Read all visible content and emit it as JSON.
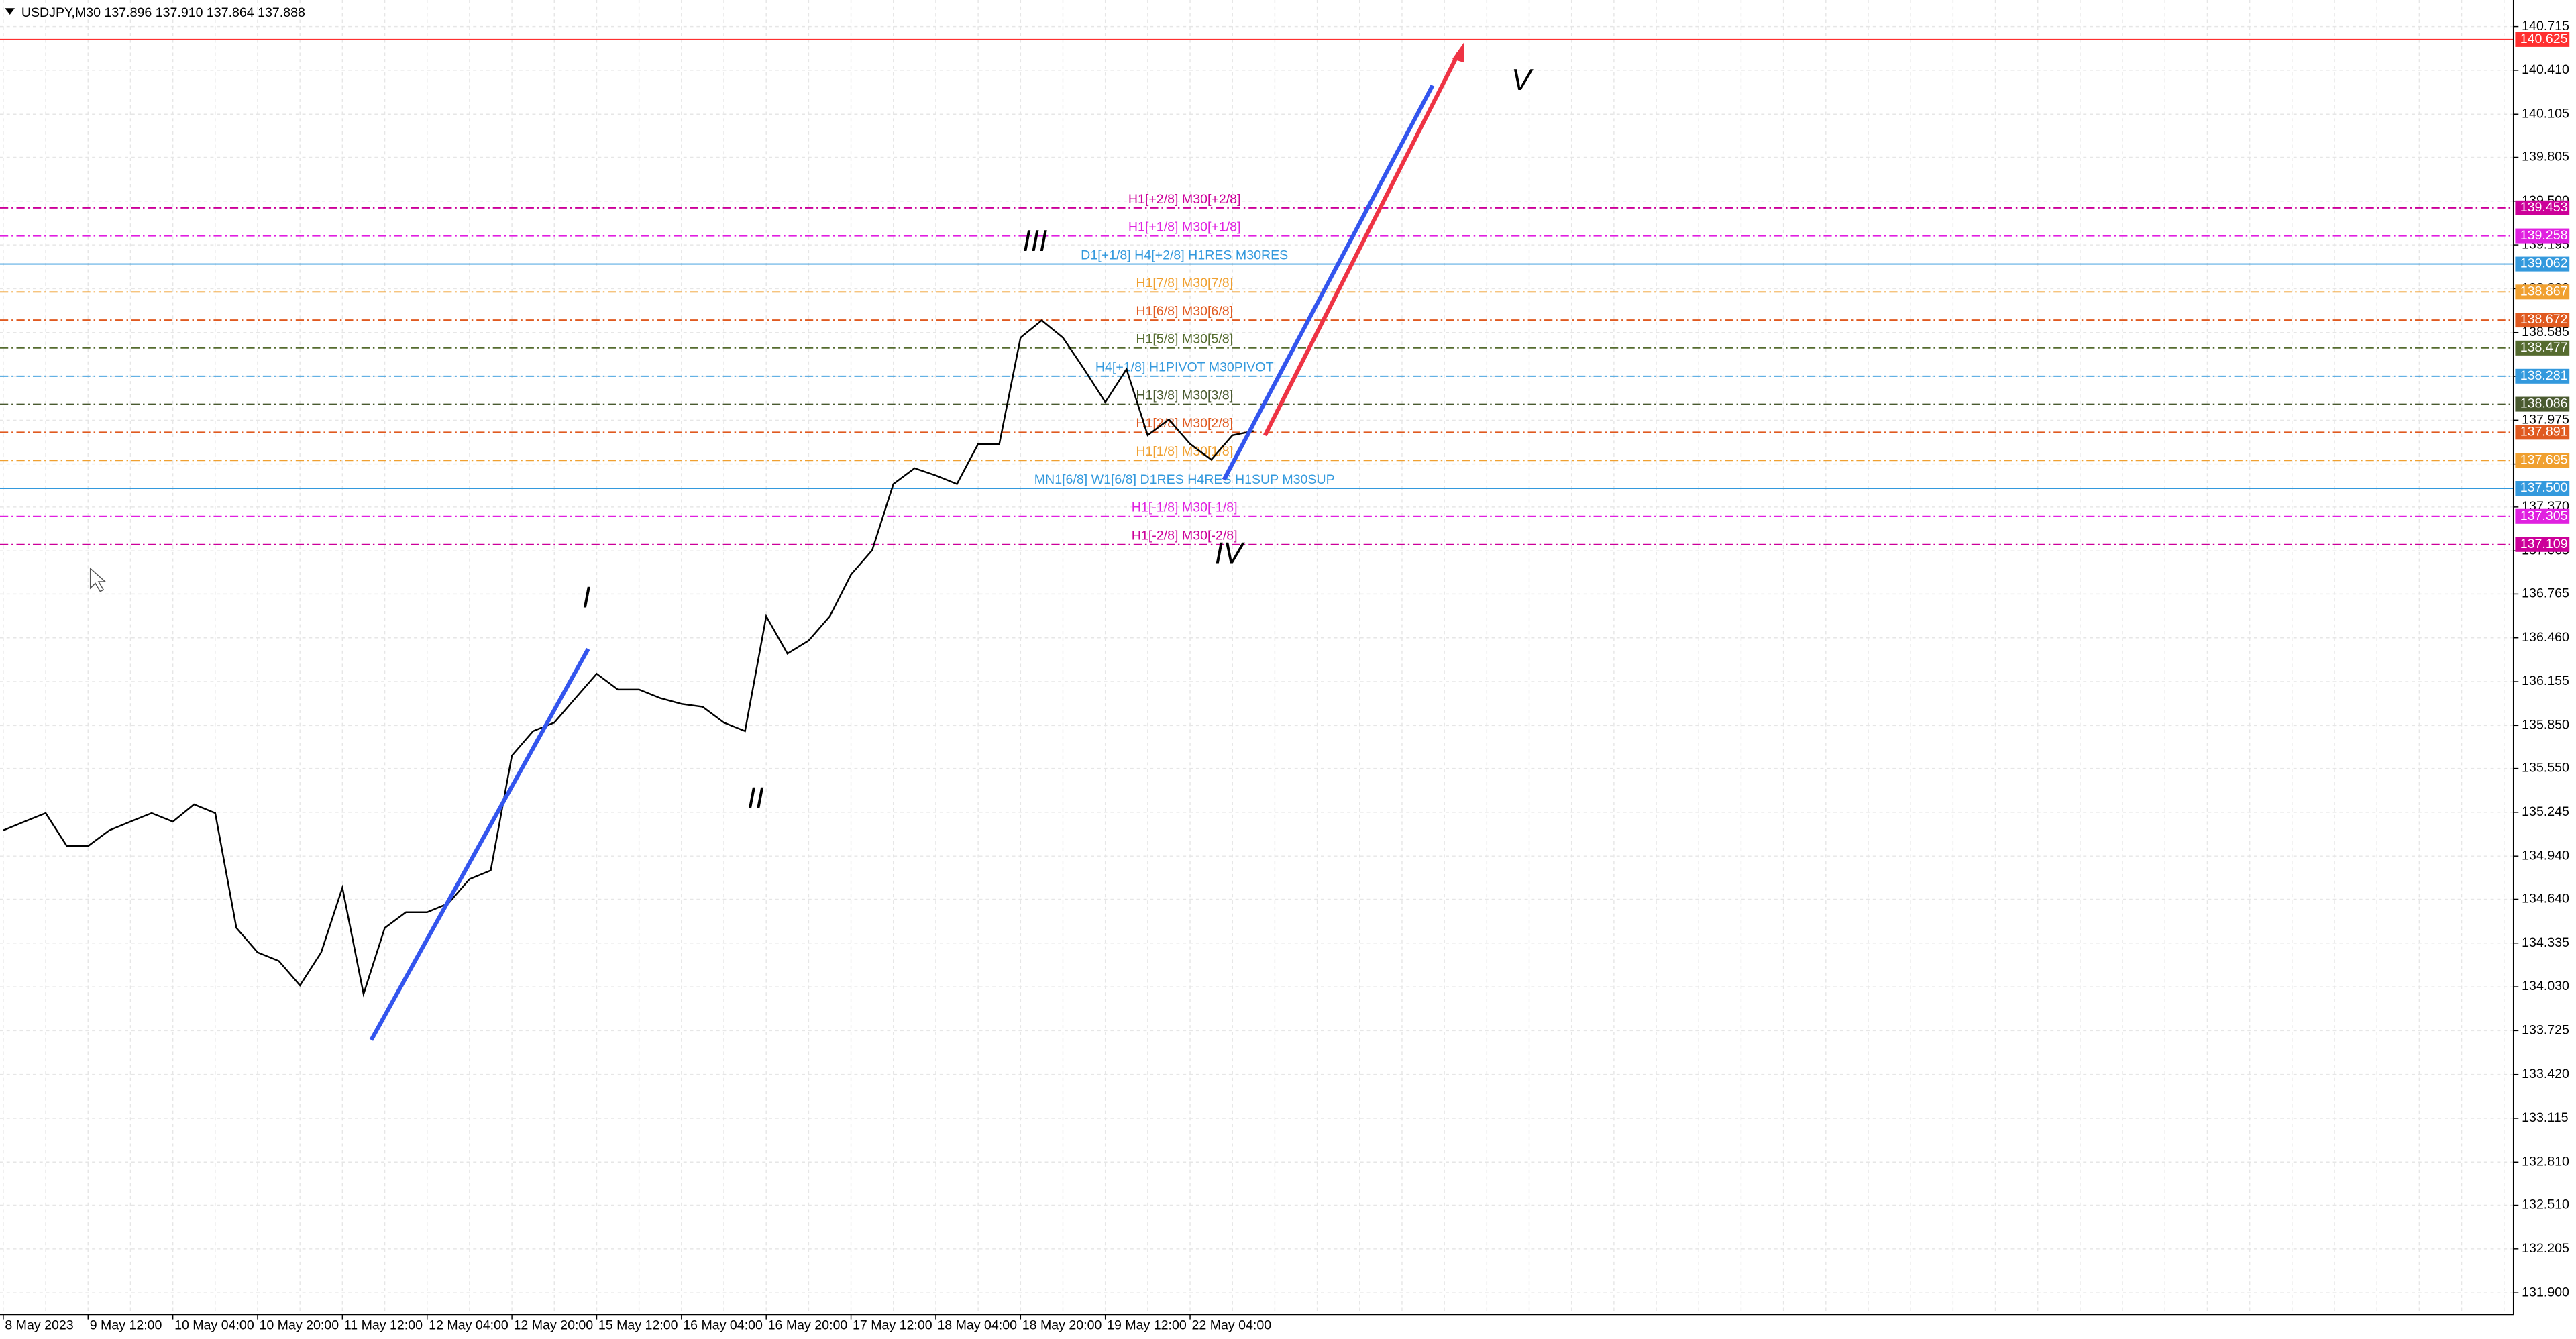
{
  "header": "USDJPY,M30  137.896 137.910 137.864 137.888",
  "chart_data": {
    "type": "line",
    "categories": [
      "8 May 2023",
      null,
      null,
      null,
      "9 May 12:00",
      null,
      null,
      null,
      "10 May 04:00",
      null,
      null,
      null,
      "10 May 20:00",
      null,
      null,
      null,
      "11 May 12:00",
      null,
      null,
      null,
      "12 May 04:00",
      null,
      null,
      null,
      "12 May 20:00",
      null,
      null,
      null,
      "15 May 12:00",
      null,
      null,
      null,
      "16 May 04:00",
      null,
      null,
      null,
      "16 May 20:00",
      null,
      null,
      null,
      "17 May 12:00",
      null,
      null,
      null,
      "18 May 04:00",
      null,
      null,
      null,
      "18 May 20:00",
      null,
      null,
      null,
      "19 May 12:00",
      null,
      null,
      null,
      "22 May 04:00",
      null,
      null,
      null
    ],
    "values": [
      135.12,
      135.18,
      135.24,
      135.01,
      135.01,
      135.12,
      135.18,
      135.24,
      135.18,
      135.3,
      135.24,
      134.44,
      134.27,
      134.21,
      134.04,
      134.27,
      134.72,
      133.98,
      134.44,
      134.55,
      134.55,
      134.61,
      134.78,
      134.84,
      135.64,
      135.81,
      135.87,
      136.04,
      136.21,
      136.1,
      136.1,
      136.04,
      136.0,
      135.98,
      135.87,
      135.81,
      136.61,
      136.35,
      136.44,
      136.61,
      136.9,
      137.07,
      137.53,
      137.64,
      137.59,
      137.53,
      137.81,
      137.81,
      138.55,
      138.67,
      138.55,
      138.33,
      138.1,
      138.33,
      137.87,
      137.98,
      137.81,
      137.7,
      137.87,
      137.9
    ],
    "color": "#000000",
    "ylim": [
      131.75,
      140.9
    ],
    "yticks": [
      140.715,
      {
        "value": 140.41,
        "label": "140.410"
      },
      140.105,
      139.805,
      {
        "value": 139.5,
        "label": "139.500"
      },
      139.195,
      {
        "value": 138.89,
        "label": "138.890"
      },
      138.585,
      {
        "value": 138.28,
        "label": "138.280"
      },
      137.975,
      {
        "value": 137.67,
        "label": "137.670"
      },
      {
        "value": 137.37,
        "label": "137.370"
      },
      137.065,
      136.765,
      {
        "value": 136.46,
        "label": "136.460"
      },
      136.155,
      {
        "value": 135.85,
        "label": "135.850"
      },
      {
        "value": 135.55,
        "label": "135.550"
      },
      135.245,
      {
        "value": 134.94,
        "label": "134.940"
      },
      {
        "value": 134.64,
        "label": "134.640"
      },
      134.335,
      {
        "value": 134.03,
        "label": "134.030"
      },
      133.725,
      {
        "value": 133.42,
        "label": "133.420"
      },
      133.115,
      {
        "value": 132.81,
        "label": "132.810"
      },
      {
        "value": 132.51,
        "label": "132.510"
      },
      132.205,
      {
        "value": 131.9,
        "label": "131.900"
      }
    ],
    "grid": true,
    "levels": [
      {
        "color": "#ff3030",
        "dash": false,
        "price": 140.625
      },
      {
        "label": "H1[+2/8] M30[+2/8]",
        "color": "#cc0099",
        "dash": true,
        "price": 139.453
      },
      {
        "label": "H1[+1/8] M30[+1/8]",
        "color": "#e020e0",
        "dash": true,
        "price": 139.258
      },
      {
        "label": "D1[+1/8] H4[+2/8] H1RES M30RES",
        "color": "#3399dd",
        "dash": false,
        "price": 139.062
      },
      {
        "label": "H1[7/8] M30[7/8]",
        "color": "#f0a030",
        "dash": true,
        "price": 138.867
      },
      {
        "label": "H1[6/8] M30[6/8]",
        "color": "#e05a20",
        "dash": true,
        "price": 138.672
      },
      {
        "label": "H1[5/8] M30[5/8]",
        "color": "#556b2f",
        "dash": true,
        "price": 138.477
      },
      {
        "label": "H4[+1/8] H1PIVOT M30PIVOT",
        "color": "#3399dd",
        "dash": true,
        "price": 138.281
      },
      {
        "label": "H1[3/8] M30[3/8]",
        "color": "#4a5a30",
        "dash": true,
        "price": 138.086
      },
      {
        "label": "H1[2/8] M30[2/8]",
        "color": "#e05a20",
        "dash": true,
        "price": 137.891
      },
      {
        "label": "H1[1/8] M30[1/8]",
        "color": "#f0a030",
        "dash": true,
        "price": 137.695
      },
      {
        "label": "MN1[6/8] W1[6/8] D1RES H4RES H1SUP M30SUP",
        "color": "#3399dd",
        "dash": false,
        "price": {
          "value": 137.5,
          "label": "137.500"
        }
      },
      {
        "label": "H1[-1/8] M30[-1/8]",
        "color": "#e020e0",
        "dash": true,
        "price": 137.305
      },
      {
        "label": "H1[-2/8] M30[-2/8]",
        "color": "#cc0099",
        "dash": true,
        "price": 137.109
      }
    ],
    "annotations": [
      "I",
      "II",
      "III",
      "IV",
      "V"
    ]
  }
}
